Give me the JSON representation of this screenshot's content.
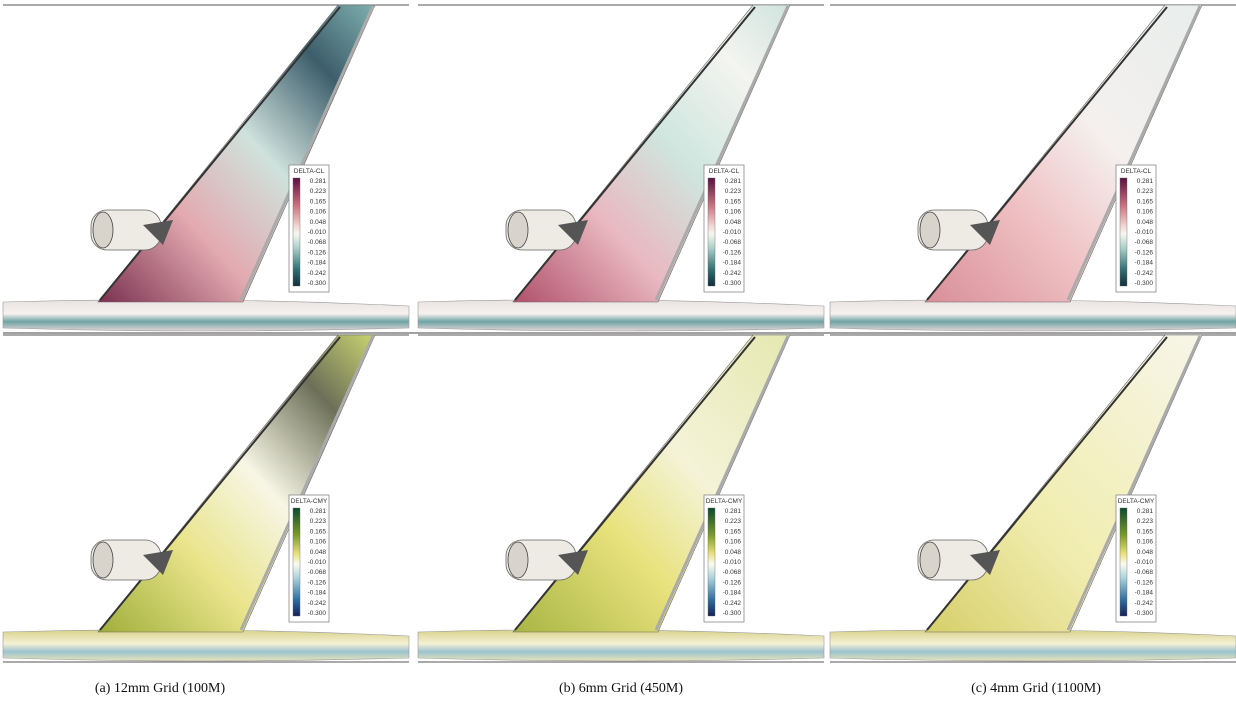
{
  "panels": [
    {
      "legend_title": "DELTA-CL",
      "legend_labels": [
        "0.281",
        "0.223",
        "0.165",
        "0.106",
        "0.048",
        "-0.010",
        "-0.068",
        "-0.126",
        "-0.184",
        "-0.242",
        "-0.300"
      ]
    },
    {
      "legend_title": "DELTA-CL",
      "legend_labels": [
        "0.281",
        "0.223",
        "0.165",
        "0.106",
        "0.048",
        "-0.010",
        "-0.068",
        "-0.126",
        "-0.184",
        "-0.242",
        "-0.300"
      ]
    },
    {
      "legend_title": "DELTA-CL",
      "legend_labels": [
        "0.281",
        "0.223",
        "0.165",
        "0.106",
        "0.048",
        "-0.010",
        "-0.068",
        "-0.126",
        "-0.184",
        "-0.242",
        "-0.300"
      ]
    },
    {
      "legend_title": "DELTA-CMY",
      "legend_labels": [
        "0.281",
        "0.223",
        "0.165",
        "0.106",
        "0.048",
        "-0.010",
        "-0.068",
        "-0.126",
        "-0.184",
        "-0.242",
        "-0.300"
      ]
    },
    {
      "legend_title": "DELTA-CMY",
      "legend_labels": [
        "0.281",
        "0.223",
        "0.165",
        "0.106",
        "0.048",
        "-0.010",
        "-0.068",
        "-0.126",
        "-0.184",
        "-0.242",
        "-0.300"
      ]
    },
    {
      "legend_title": "DELTA-CMY",
      "legend_labels": [
        "0.281",
        "0.223",
        "0.165",
        "0.106",
        "0.048",
        "-0.010",
        "-0.068",
        "-0.126",
        "-0.184",
        "-0.242",
        "-0.300"
      ]
    }
  ],
  "captions": [
    "(a)  12mm Grid (100M)",
    "(b)  6mm Grid (450M)",
    "(c)  4mm Grid (1100M)"
  ]
}
